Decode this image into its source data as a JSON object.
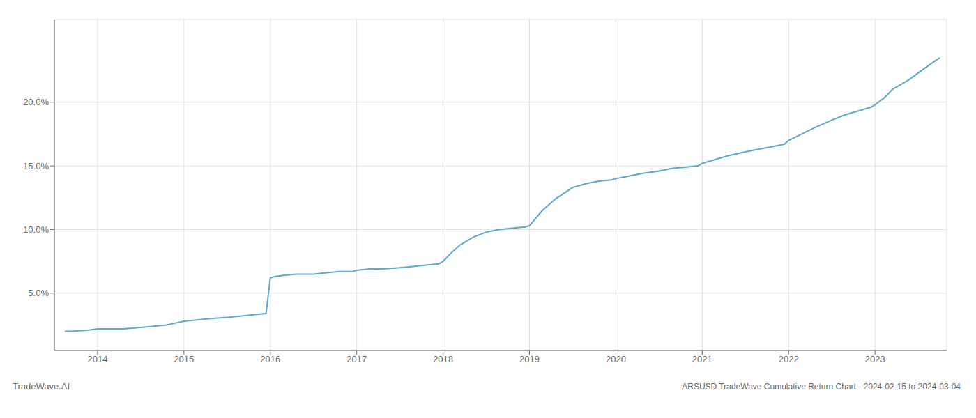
{
  "chart_data": {
    "type": "line",
    "title": "ARSUSD TradeWave Cumulative Return Chart - 2024-02-15 to 2024-03-04",
    "annotations": [
      "TradeWave.AI"
    ],
    "color": "#5ba8c9",
    "grid": true,
    "xlim": [
      2013.5,
      2023.83
    ],
    "xticks": [
      2014,
      2015,
      2016,
      2017,
      2018,
      2019,
      2020,
      2021,
      2022,
      2023
    ],
    "ylim": [
      0.005,
      0.265
    ],
    "yticks": [
      {
        "value": 0.05,
        "label": "5.0%"
      },
      {
        "value": 0.1,
        "label": "10.0%"
      },
      {
        "value": 0.15,
        "label": "15.0%"
      },
      {
        "value": 0.2,
        "label": "20.0%"
      }
    ],
    "x": [
      2013.62,
      2013.7,
      2013.9,
      2014.0,
      2014.15,
      2014.3,
      2014.5,
      2014.65,
      2014.8,
      2015.0,
      2015.15,
      2015.3,
      2015.5,
      2015.65,
      2015.8,
      2015.95,
      2016.0,
      2016.05,
      2016.15,
      2016.3,
      2016.5,
      2016.65,
      2016.8,
      2016.95,
      2017.0,
      2017.15,
      2017.3,
      2017.5,
      2017.65,
      2017.8,
      2017.95,
      2018.0,
      2018.1,
      2018.2,
      2018.35,
      2018.5,
      2018.65,
      2018.8,
      2018.95,
      2019.0,
      2019.15,
      2019.3,
      2019.5,
      2019.65,
      2019.8,
      2019.95,
      2020.0,
      2020.15,
      2020.3,
      2020.5,
      2020.65,
      2020.8,
      2020.95,
      2021.0,
      2021.15,
      2021.3,
      2021.5,
      2021.65,
      2021.8,
      2021.95,
      2022.0,
      2022.15,
      2022.3,
      2022.5,
      2022.65,
      2022.8,
      2022.95,
      2023.0,
      2023.1,
      2023.2,
      2023.4,
      2023.6,
      2023.75
    ],
    "values": [
      0.02,
      0.02,
      0.021,
      0.022,
      0.022,
      0.022,
      0.023,
      0.024,
      0.025,
      0.028,
      0.029,
      0.03,
      0.031,
      0.032,
      0.033,
      0.034,
      0.062,
      0.063,
      0.064,
      0.065,
      0.065,
      0.066,
      0.067,
      0.067,
      0.068,
      0.069,
      0.069,
      0.07,
      0.071,
      0.072,
      0.073,
      0.075,
      0.082,
      0.088,
      0.094,
      0.098,
      0.1,
      0.101,
      0.102,
      0.103,
      0.115,
      0.124,
      0.133,
      0.136,
      0.138,
      0.139,
      0.14,
      0.142,
      0.144,
      0.146,
      0.148,
      0.149,
      0.15,
      0.152,
      0.155,
      0.158,
      0.161,
      0.163,
      0.165,
      0.167,
      0.17,
      0.175,
      0.18,
      0.186,
      0.19,
      0.193,
      0.196,
      0.198,
      0.203,
      0.21,
      0.218,
      0.228,
      0.235
    ]
  }
}
